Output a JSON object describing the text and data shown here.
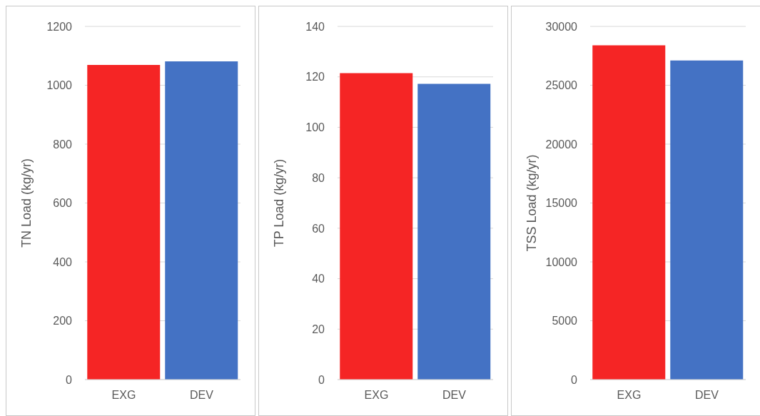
{
  "chart_data": [
    {
      "type": "bar",
      "ylabel": "TN Load (kg/yr)",
      "categories": [
        "EXG",
        "DEV"
      ],
      "values": [
        1069,
        1081
      ],
      "colors": [
        "#f52525",
        "#4472c4"
      ],
      "ylim": [
        0,
        1200
      ],
      "yticks": [
        0,
        200,
        400,
        600,
        800,
        1000,
        1200
      ],
      "grid": "y"
    },
    {
      "type": "bar",
      "ylabel": "TP Load (kg/yr)",
      "categories": [
        "EXG",
        "DEV"
      ],
      "values": [
        121.5,
        117.2
      ],
      "colors": [
        "#f52525",
        "#4472c4"
      ],
      "ylim": [
        0,
        140
      ],
      "yticks": [
        0,
        20,
        40,
        60,
        80,
        100,
        120,
        140
      ],
      "grid": "y"
    },
    {
      "type": "bar",
      "ylabel": "TSS Load (kg/yr)",
      "categories": [
        "EXG",
        "DEV"
      ],
      "values": [
        28400,
        27100
      ],
      "colors": [
        "#f52525",
        "#4472c4"
      ],
      "ylim": [
        0,
        30000
      ],
      "yticks": [
        0,
        5000,
        10000,
        15000,
        20000,
        25000,
        30000
      ],
      "grid": "y"
    }
  ]
}
